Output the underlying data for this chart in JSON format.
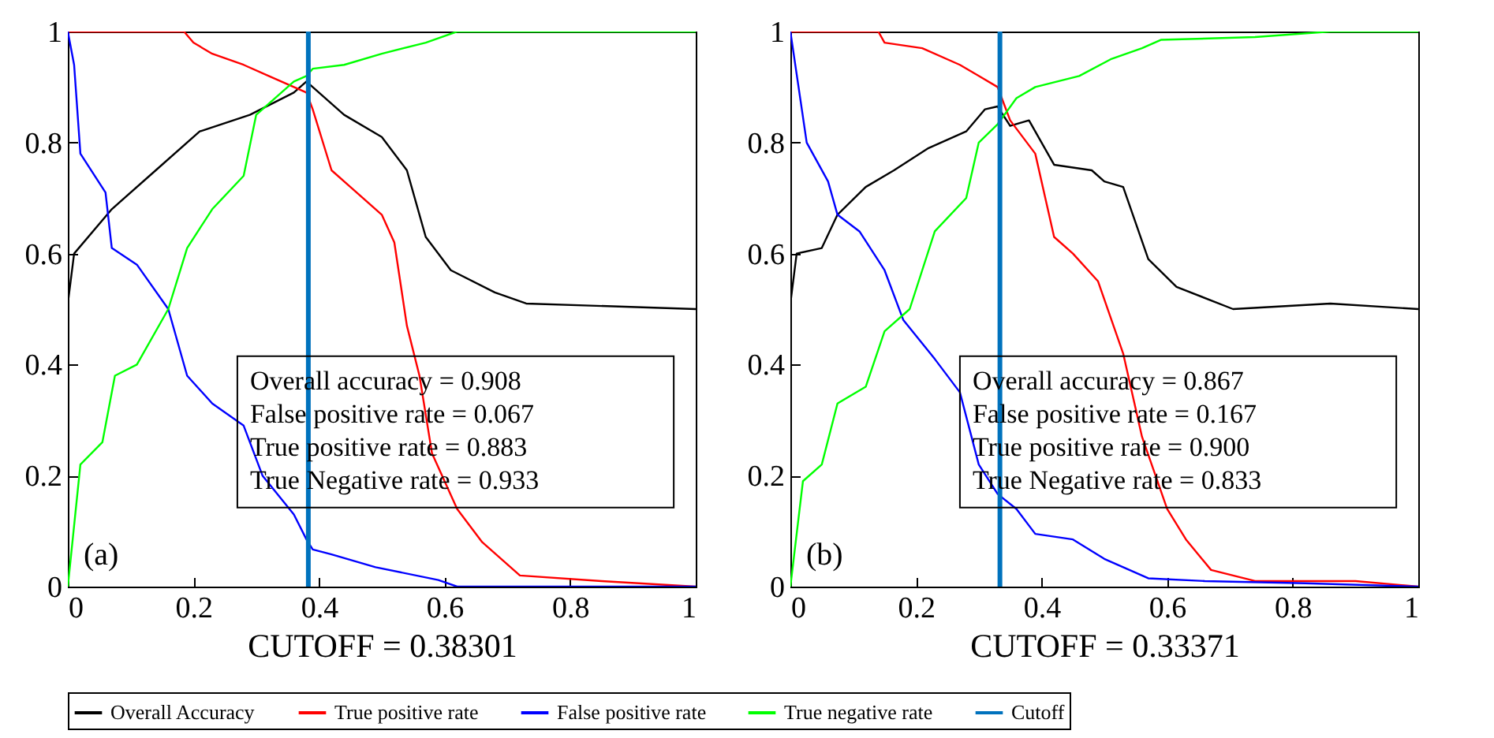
{
  "chart_data": [
    {
      "type": "line",
      "xlabel": "CUTOFF = 0.38301",
      "xlim": [
        0,
        1
      ],
      "ylim": [
        0,
        1
      ],
      "xticks": [
        0,
        0.2,
        0.4,
        0.6,
        0.8,
        1
      ],
      "yticks": [
        0,
        0.2,
        0.4,
        0.6,
        0.8,
        1
      ],
      "grid": false,
      "legend": "bottom",
      "series": [
        {
          "name": "Overall Accuracy",
          "color": "#000000",
          "x": [
            0,
            0.01,
            0.07,
            0.14,
            0.21,
            0.29,
            0.36,
            0.38,
            0.44,
            0.5,
            0.54,
            0.57,
            0.61,
            0.68,
            0.73,
            1
          ],
          "values": [
            0.51,
            0.6,
            0.68,
            0.75,
            0.82,
            0.85,
            0.89,
            0.91,
            0.85,
            0.81,
            0.75,
            0.63,
            0.57,
            0.53,
            0.51,
            0.5
          ]
        },
        {
          "name": "True positive rate",
          "color": "#ff0000",
          "x": [
            0,
            0.185,
            0.2,
            0.23,
            0.28,
            0.32,
            0.36,
            0.38,
            0.39,
            0.42,
            0.45,
            0.5,
            0.52,
            0.54,
            0.56,
            0.58,
            0.62,
            0.66,
            0.72,
            0.85,
            1
          ],
          "values": [
            1,
            1,
            0.98,
            0.96,
            0.94,
            0.92,
            0.9,
            0.89,
            0.86,
            0.75,
            0.72,
            0.67,
            0.62,
            0.47,
            0.38,
            0.24,
            0.14,
            0.08,
            0.02,
            0.01,
            0
          ]
        },
        {
          "name": "False positive rate",
          "color": "#0000ff",
          "x": [
            0,
            0.01,
            0.02,
            0.06,
            0.07,
            0.11,
            0.16,
            0.19,
            0.23,
            0.28,
            0.31,
            0.36,
            0.38,
            0.39,
            0.42,
            0.49,
            0.59,
            0.62,
            1
          ],
          "values": [
            1,
            0.94,
            0.78,
            0.71,
            0.61,
            0.58,
            0.5,
            0.38,
            0.33,
            0.29,
            0.2,
            0.13,
            0.085,
            0.067,
            0.058,
            0.035,
            0.012,
            0,
            0
          ]
        },
        {
          "name": "True negative rate",
          "color": "#00ff00",
          "x": [
            0,
            0.02,
            0.055,
            0.075,
            0.11,
            0.16,
            0.19,
            0.23,
            0.28,
            0.3,
            0.36,
            0.38,
            0.39,
            0.44,
            0.5,
            0.57,
            0.62,
            1
          ],
          "values": [
            0,
            0.22,
            0.26,
            0.38,
            0.4,
            0.5,
            0.61,
            0.68,
            0.74,
            0.85,
            0.91,
            0.92,
            0.933,
            0.94,
            0.96,
            0.98,
            1,
            1
          ]
        }
      ],
      "ref_lines": [
        {
          "axis": "x",
          "value": 0.38301,
          "label": "Cutoff",
          "color": "#0072bd"
        }
      ],
      "annotations": [
        "Overall accuracy = 0.908",
        "False positive rate = 0.067",
        "True positive rate = 0.883",
        "True Negative rate = 0.933",
        "(a)"
      ]
    },
    {
      "type": "line",
      "xlabel": "CUTOFF = 0.33371",
      "xlim": [
        0,
        1
      ],
      "ylim": [
        0,
        1
      ],
      "xticks": [
        0,
        0.2,
        0.4,
        0.6,
        0.8,
        1
      ],
      "yticks": [
        0,
        0.2,
        0.4,
        0.6,
        0.8,
        1
      ],
      "grid": false,
      "legend": "bottom",
      "series": [
        {
          "name": "Overall Accuracy",
          "color": "#000000",
          "x": [
            0,
            0.01,
            0.05,
            0.075,
            0.12,
            0.165,
            0.22,
            0.28,
            0.31,
            0.33,
            0.35,
            0.38,
            0.42,
            0.48,
            0.5,
            0.53,
            0.57,
            0.615,
            0.705,
            0.86,
            1
          ],
          "values": [
            0.51,
            0.6,
            0.61,
            0.67,
            0.72,
            0.75,
            0.79,
            0.82,
            0.86,
            0.865,
            0.83,
            0.84,
            0.76,
            0.75,
            0.73,
            0.72,
            0.59,
            0.54,
            0.5,
            0.51,
            0.5
          ]
        },
        {
          "name": "True positive rate",
          "color": "#ff0000",
          "x": [
            0,
            0.14,
            0.15,
            0.21,
            0.27,
            0.3,
            0.33,
            0.35,
            0.39,
            0.42,
            0.45,
            0.49,
            0.53,
            0.56,
            0.6,
            0.63,
            0.67,
            0.74,
            0.9,
            1
          ],
          "values": [
            1,
            1,
            0.98,
            0.97,
            0.94,
            0.92,
            0.9,
            0.84,
            0.78,
            0.63,
            0.6,
            0.55,
            0.42,
            0.27,
            0.14,
            0.085,
            0.03,
            0.01,
            0.01,
            0
          ]
        },
        {
          "name": "False positive rate",
          "color": "#0000ff",
          "x": [
            0,
            0.026,
            0.06,
            0.075,
            0.11,
            0.15,
            0.18,
            0.23,
            0.27,
            0.3,
            0.33,
            0.36,
            0.39,
            0.45,
            0.5,
            0.57,
            0.66,
            0.82,
            1
          ],
          "values": [
            1,
            0.8,
            0.73,
            0.67,
            0.64,
            0.57,
            0.48,
            0.41,
            0.35,
            0.22,
            0.167,
            0.14,
            0.095,
            0.085,
            0.05,
            0.015,
            0.01,
            0.006,
            0
          ]
        },
        {
          "name": "True negative rate",
          "color": "#00ff00",
          "x": [
            0,
            0.02,
            0.05,
            0.075,
            0.12,
            0.15,
            0.19,
            0.23,
            0.28,
            0.3,
            0.33,
            0.36,
            0.39,
            0.46,
            0.51,
            0.56,
            0.59,
            0.74,
            0.86,
            1
          ],
          "values": [
            0,
            0.19,
            0.22,
            0.33,
            0.36,
            0.46,
            0.5,
            0.64,
            0.7,
            0.8,
            0.833,
            0.88,
            0.9,
            0.92,
            0.95,
            0.97,
            0.985,
            0.99,
            1,
            1
          ]
        }
      ],
      "ref_lines": [
        {
          "axis": "x",
          "value": 0.33371,
          "color": "#0072bd"
        }
      ],
      "annotations": [
        "Overall accuracy = 0.867",
        "False positive rate = 0.167",
        "True positive rate = 0.900",
        "True Negative rate = 0.833",
        "(b)"
      ]
    }
  ]
}
